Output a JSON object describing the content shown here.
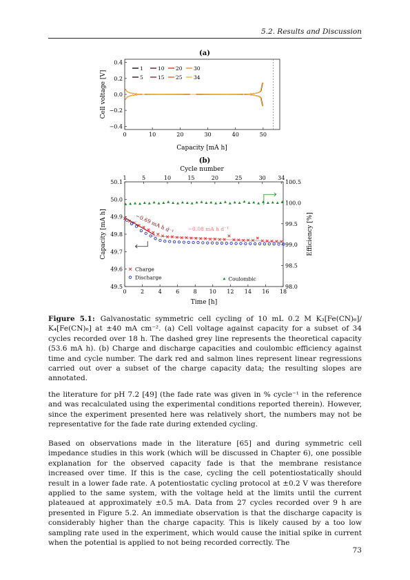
{
  "header": {
    "running_title": "5.2.  Results and Discussion"
  },
  "figure": {
    "panel_a_label": "(a)",
    "panel_b_label": "(b)",
    "caption_label": "Figure 5.1:",
    "caption_text": "Galvanostatic symmetric cell cycling of 10 mL 0.2 M K₃[Fe(CN)₆]/ K₄[Fe(CN)₆] at ±40 mA cm⁻². (a) Cell voltage against capacity for a subset of 34 cycles recorded over 18 h. The dashed grey line represents the theoretical capacity (53.6 mA h). (b) Charge and discharge capacities and coulombic efficiency against time and cycle number. The dark red and salmon lines represent linear regressions carried out over a subset of the charge capacity data; the resulting slopes are annotated."
  },
  "body": {
    "paragraph_1": "the literature for pH 7.2 [49] (the fade rate was given in % cycle⁻¹ in the reference and was recalculated using the experimental conditions reported therein). However, since the experiment presented here was relatively short, the numbers may not be representative for the fade rate during extended cycling.",
    "paragraph_2": "Based on observations made in the literature [65] and during symmetric cell impedance studies in this work (which will be discussed in Chapter 6), one possible explanation for the observed capacity fade is that the membrane resistance increased over time. If this is the case, cycling the cell potentiostatically should result in a lower fade rate. A potentiostatic cycling protocol at ±0.2 V was therefore applied to the same system, with the voltage held at the limits until the current plateaued at approximately ±0.5 mA. Data from 27 cycles recorded over 9 h are presented in Figure 5.2. An immediate observation is that the discharge capacity is considerably higher than the charge capacity. This is likely caused by a too low sampling rate used in the experiment, which would cause the initial spike in current when the potential is applied to not being recorded correctly. The"
  },
  "page_number": "73",
  "chart_data": [
    {
      "type": "line",
      "panel": "(a)",
      "xlabel": "Capacity [mA h]",
      "ylabel": "Cell voltage [V]",
      "xlim": [
        0,
        56
      ],
      "ylim": [
        -0.44,
        0.44
      ],
      "xticks": [
        "0",
        "10",
        "20",
        "30",
        "40",
        "50"
      ],
      "yticks": [
        "0.4",
        "0.2",
        "0.0",
        "−0.2",
        "−0.4"
      ],
      "theoretical_capacity": 53.6,
      "legend_position": "upper-left",
      "colors": {
        "early": "#1a0000",
        "mid": "#b8322a",
        "late": "#f0a830"
      },
      "series": [
        {
          "name": "1",
          "color": "#1a0a05",
          "capacity": 49.85
        },
        {
          "name": "5",
          "color": "#3d0f12",
          "capacity": 49.8
        },
        {
          "name": "10",
          "color": "#6a1a20",
          "capacity": 49.75
        },
        {
          "name": "15",
          "color": "#94262a",
          "capacity": 49.73
        },
        {
          "name": "20",
          "color": "#c0452d",
          "capacity": 49.72
        },
        {
          "name": "25",
          "color": "#dc6a2a",
          "capacity": 49.71
        },
        {
          "name": "30",
          "color": "#eb8e2c",
          "capacity": 49.7
        },
        {
          "name": "34",
          "color": "#f5b53a",
          "capacity": 49.69
        }
      ]
    },
    {
      "type": "scatter",
      "panel": "(b)",
      "xlabel": "Time [h]",
      "x2label": "Cycle number",
      "ylabel": "Capacity [mA h]",
      "y2label": "Efficiency [%]",
      "xlim": [
        0,
        18
      ],
      "ylim": [
        49.5,
        50.1
      ],
      "y2lim": [
        98.0,
        100.5
      ],
      "xticks": [
        "0",
        "2",
        "4",
        "6",
        "8",
        "10",
        "12",
        "14",
        "16",
        "18"
      ],
      "x2ticks": [
        "1",
        "5",
        "10",
        "15",
        "20",
        "25",
        "30",
        "34"
      ],
      "yticks": [
        "50.1",
        "50.0",
        "49.9",
        "49.8",
        "49.7",
        "49.6",
        "49.5"
      ],
      "y2ticks": [
        "100.5",
        "100.0",
        "99.5",
        "99.0",
        "98.5",
        "98.0"
      ],
      "legend_left": [
        "Charge",
        "Discharge"
      ],
      "legend_right": [
        "Coulombic"
      ],
      "slope_label_1": "−0.69 mA h d⁻¹",
      "slope_label_2": "−0.08 mA h d⁻¹",
      "colors": {
        "charge": "#d62a2a",
        "discharge": "#2233bb",
        "coulombic": "#1a8a2a",
        "fit1": "#8b1010",
        "fit2": "#f0a0a0"
      },
      "charge": [
        49.89,
        49.875,
        49.865,
        49.85,
        49.84,
        49.825,
        49.81,
        49.8,
        49.79,
        49.785,
        49.785,
        49.782,
        49.78,
        49.78,
        49.778,
        49.777,
        49.775,
        49.775,
        49.772,
        49.772,
        49.77,
        49.77,
        49.79,
        49.768,
        49.767,
        49.765,
        49.766,
        49.765,
        49.778,
        49.762,
        49.761,
        49.76,
        49.759,
        49.758
      ],
      "discharge": [
        49.88,
        49.86,
        49.845,
        49.82,
        49.805,
        49.79,
        49.775,
        49.765,
        49.76,
        49.758,
        49.756,
        49.755,
        49.754,
        49.753,
        49.752,
        49.752,
        49.751,
        49.75,
        49.75,
        49.749,
        49.749,
        49.748,
        49.748,
        49.747,
        49.747,
        49.746,
        49.746,
        49.745,
        49.745,
        49.744,
        49.744,
        49.744,
        49.743,
        49.743
      ],
      "coulombic": [
        99.97,
        99.98,
        99.99,
        99.98,
        100.0,
        99.99,
        100.01,
        99.99,
        100.0,
        100.02,
        100.0,
        99.99,
        100.01,
        100.0,
        99.99,
        100.01,
        100.02,
        100.0,
        100.01,
        99.99,
        100.0,
        100.02,
        99.99,
        100.01,
        100.0,
        100.03,
        100.0,
        100.01,
        99.99,
        100.02,
        100.0,
        100.01,
        100.0,
        100.02
      ]
    }
  ]
}
